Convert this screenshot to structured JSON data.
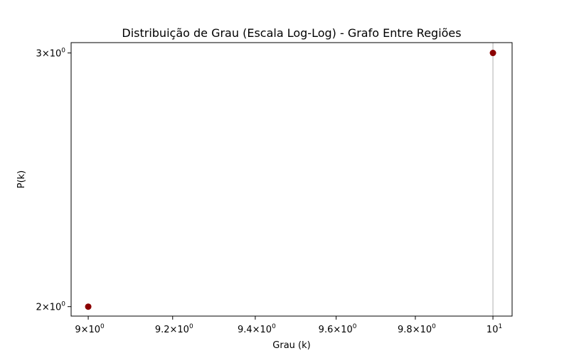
{
  "chart_data": {
    "type": "scatter",
    "title": "Distribuição de Grau (Escala Log-Log) - Grafo Entre Regiões",
    "xlabel": "Grau (k)",
    "ylabel": "P(k)",
    "xscale": "log",
    "yscale": "log",
    "xlim": [
      8.96,
      10.05
    ],
    "ylim": [
      1.97,
      3.05
    ],
    "x_ticks": [
      {
        "value": 9.0,
        "mantissa": "9",
        "base": "10",
        "exp": "0"
      },
      {
        "value": 9.2,
        "mantissa": "9.2",
        "base": "10",
        "exp": "0"
      },
      {
        "value": 9.4,
        "mantissa": "9.4",
        "base": "10",
        "exp": "0"
      },
      {
        "value": 9.6,
        "mantissa": "9.6",
        "base": "10",
        "exp": "0"
      },
      {
        "value": 9.8,
        "mantissa": "9.8",
        "base": "10",
        "exp": "0"
      },
      {
        "value": 10,
        "mantissa": "",
        "base": "10",
        "exp": "1"
      }
    ],
    "y_ticks": [
      {
        "value": 2,
        "mantissa": "2",
        "base": "10",
        "exp": "0"
      },
      {
        "value": 3,
        "mantissa": "3",
        "base": "10",
        "exp": "0"
      }
    ],
    "grid": {
      "x_major": true,
      "x_major_at": [
        10
      ]
    },
    "points": [
      {
        "x": 9,
        "y": 2
      },
      {
        "x": 10,
        "y": 3
      }
    ],
    "marker_color": "#8b0000",
    "grid_color": "#b0b0b0"
  }
}
